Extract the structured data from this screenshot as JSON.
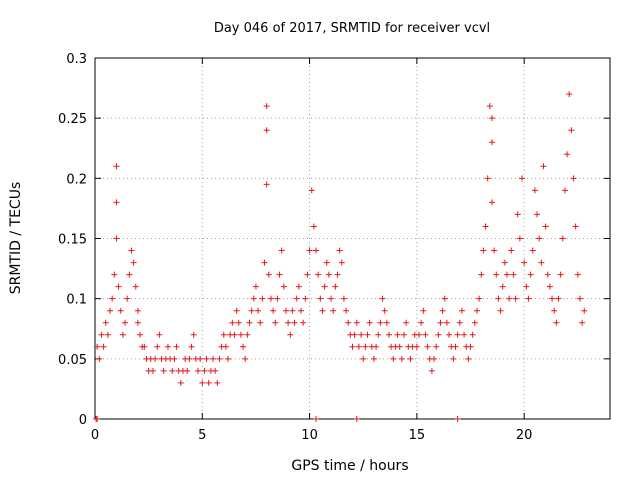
{
  "chart_data": {
    "type": "scatter",
    "title": "Day 046 of 2017, SRMTID for receiver vcvl",
    "xlabel": "GPS time / hours",
    "ylabel": "SRMTID / TECUs",
    "xlim": [
      0,
      24
    ],
    "ylim": [
      0,
      0.3
    ],
    "xticks": [
      0,
      5,
      10,
      15,
      20
    ],
    "xtick_labels": [
      "0",
      "5",
      "10",
      "15",
      "20"
    ],
    "yticks": [
      0,
      0.05,
      0.1,
      0.15,
      0.2,
      0.25,
      0.3
    ],
    "ytick_labels": [
      "0",
      "0.05",
      "0.1",
      "0.15",
      "0.2",
      "0.25",
      "0.3"
    ],
    "grid": true,
    "marker": "plus",
    "series": [
      {
        "name": "SRMTID",
        "color": "#e41a1c",
        "x": [
          0.1,
          0.2,
          0.3,
          0.4,
          0.5,
          0.6,
          0.7,
          0.8,
          0.9,
          1.0,
          1.0,
          1.0,
          1.1,
          1.2,
          1.3,
          1.4,
          1.5,
          1.6,
          1.7,
          1.8,
          1.9,
          2.0,
          2.0,
          2.1,
          2.2,
          2.3,
          2.4,
          2.5,
          2.6,
          2.7,
          2.8,
          2.9,
          3.0,
          3.1,
          3.2,
          3.3,
          3.4,
          3.5,
          3.6,
          3.7,
          3.8,
          3.9,
          4.0,
          4.1,
          4.2,
          4.3,
          4.4,
          4.5,
          4.6,
          4.7,
          4.8,
          4.9,
          5.0,
          5.1,
          5.2,
          5.3,
          5.4,
          5.5,
          5.6,
          5.7,
          5.8,
          5.9,
          6.0,
          6.1,
          6.2,
          6.3,
          6.4,
          6.5,
          6.6,
          6.7,
          6.8,
          6.9,
          7.0,
          7.1,
          7.2,
          7.3,
          7.4,
          7.5,
          7.6,
          7.7,
          7.8,
          7.9,
          8.0,
          8.0,
          8.0,
          8.1,
          8.2,
          8.3,
          8.4,
          8.5,
          8.6,
          8.7,
          8.8,
          8.9,
          9.0,
          9.1,
          9.2,
          9.3,
          9.4,
          9.5,
          9.6,
          9.7,
          9.8,
          9.9,
          10.0,
          10.1,
          10.2,
          10.3,
          10.4,
          10.5,
          10.6,
          10.7,
          10.8,
          10.9,
          11.0,
          11.1,
          11.2,
          11.3,
          11.4,
          11.5,
          11.6,
          11.7,
          11.8,
          11.9,
          12.0,
          12.1,
          12.2,
          12.3,
          12.4,
          12.5,
          12.6,
          12.7,
          12.8,
          12.9,
          13.0,
          13.1,
          13.2,
          13.3,
          13.4,
          13.5,
          13.6,
          13.7,
          13.8,
          13.9,
          14.0,
          14.1,
          14.2,
          14.3,
          14.4,
          14.5,
          14.6,
          14.7,
          14.8,
          14.9,
          15.0,
          15.1,
          15.2,
          15.3,
          15.4,
          15.5,
          15.6,
          15.7,
          15.8,
          15.9,
          16.0,
          16.1,
          16.2,
          16.3,
          16.4,
          16.5,
          16.6,
          16.7,
          16.8,
          16.9,
          17.0,
          17.1,
          17.2,
          17.3,
          17.4,
          17.5,
          17.6,
          17.7,
          17.8,
          17.9,
          18.0,
          18.1,
          18.2,
          18.3,
          18.4,
          18.5,
          18.5,
          18.5,
          18.6,
          18.7,
          18.8,
          18.9,
          19.0,
          19.1,
          19.2,
          19.3,
          19.4,
          19.5,
          19.6,
          19.7,
          19.8,
          19.9,
          20.0,
          20.1,
          20.2,
          20.3,
          20.4,
          20.5,
          20.6,
          20.7,
          20.8,
          20.9,
          21.0,
          21.1,
          21.2,
          21.3,
          21.4,
          21.5,
          21.6,
          21.7,
          21.8,
          21.9,
          22.0,
          22.1,
          22.2,
          22.3,
          22.4,
          22.5,
          22.6,
          22.7,
          22.8,
          0.05,
          0.1,
          10.3,
          12.2,
          16.9
        ],
        "y": [
          0.06,
          0.05,
          0.07,
          0.06,
          0.08,
          0.07,
          0.09,
          0.1,
          0.12,
          0.21,
          0.18,
          0.15,
          0.11,
          0.09,
          0.07,
          0.08,
          0.1,
          0.12,
          0.14,
          0.13,
          0.11,
          0.09,
          0.08,
          0.07,
          0.06,
          0.06,
          0.05,
          0.04,
          0.05,
          0.04,
          0.05,
          0.06,
          0.07,
          0.05,
          0.04,
          0.05,
          0.06,
          0.05,
          0.04,
          0.05,
          0.06,
          0.04,
          0.03,
          0.04,
          0.05,
          0.04,
          0.05,
          0.06,
          0.07,
          0.05,
          0.04,
          0.05,
          0.03,
          0.04,
          0.05,
          0.03,
          0.04,
          0.05,
          0.04,
          0.03,
          0.05,
          0.06,
          0.07,
          0.06,
          0.05,
          0.07,
          0.08,
          0.07,
          0.09,
          0.08,
          0.07,
          0.06,
          0.05,
          0.07,
          0.08,
          0.09,
          0.1,
          0.11,
          0.09,
          0.08,
          0.1,
          0.13,
          0.26,
          0.24,
          0.195,
          0.12,
          0.1,
          0.09,
          0.08,
          0.1,
          0.12,
          0.14,
          0.11,
          0.09,
          0.08,
          0.07,
          0.09,
          0.08,
          0.1,
          0.11,
          0.09,
          0.08,
          0.1,
          0.12,
          0.14,
          0.19,
          0.16,
          0.14,
          0.12,
          0.1,
          0.09,
          0.11,
          0.13,
          0.12,
          0.1,
          0.09,
          0.11,
          0.12,
          0.14,
          0.13,
          0.1,
          0.09,
          0.08,
          0.07,
          0.06,
          0.07,
          0.08,
          0.06,
          0.07,
          0.05,
          0.06,
          0.07,
          0.08,
          0.06,
          0.05,
          0.06,
          0.07,
          0.08,
          0.1,
          0.09,
          0.08,
          0.07,
          0.06,
          0.05,
          0.06,
          0.07,
          0.06,
          0.05,
          0.07,
          0.08,
          0.06,
          0.05,
          0.06,
          0.07,
          0.06,
          0.07,
          0.08,
          0.09,
          0.07,
          0.06,
          0.05,
          0.04,
          0.05,
          0.06,
          0.07,
          0.08,
          0.09,
          0.1,
          0.08,
          0.07,
          0.06,
          0.05,
          0.06,
          0.07,
          0.08,
          0.09,
          0.07,
          0.06,
          0.05,
          0.06,
          0.07,
          0.08,
          0.09,
          0.1,
          0.12,
          0.14,
          0.16,
          0.2,
          0.26,
          0.25,
          0.23,
          0.18,
          0.14,
          0.12,
          0.1,
          0.09,
          0.11,
          0.13,
          0.12,
          0.1,
          0.14,
          0.12,
          0.1,
          0.17,
          0.15,
          0.2,
          0.13,
          0.11,
          0.1,
          0.12,
          0.14,
          0.19,
          0.17,
          0.15,
          0.13,
          0.21,
          0.16,
          0.12,
          0.11,
          0.1,
          0.09,
          0.08,
          0.1,
          0.12,
          0.15,
          0.19,
          0.22,
          0.27,
          0.24,
          0.2,
          0.16,
          0.12,
          0.1,
          0.08,
          0.09,
          0.0,
          0.0,
          0.0,
          0.0,
          0.0
        ]
      }
    ]
  }
}
